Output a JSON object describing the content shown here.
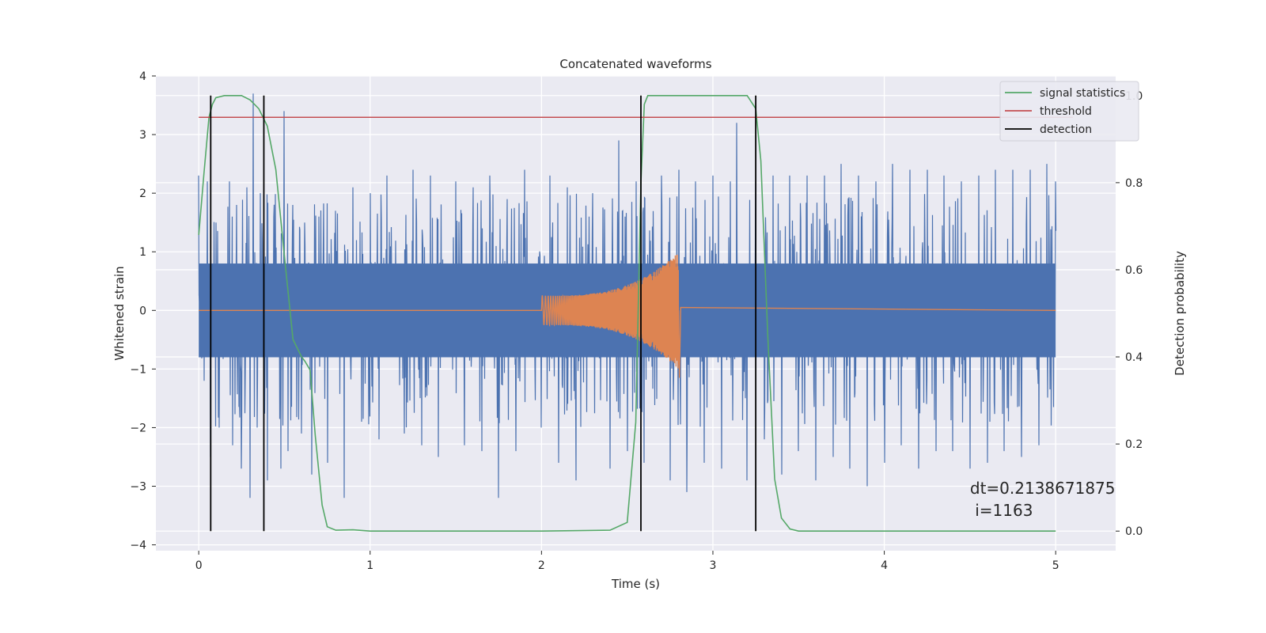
{
  "chart_data": {
    "type": "line",
    "title": "Concatenated waveforms",
    "xlabel": "Time (s)",
    "ylabel": "Whitened strain",
    "y2label": "Detection probability",
    "xlim": [
      -0.25,
      5.35
    ],
    "ylim": [
      -4.1,
      4.0
    ],
    "y2lim": [
      -0.045,
      1.045
    ],
    "xticks": [
      0,
      1,
      2,
      3,
      4,
      5
    ],
    "yticks": [
      -4,
      -3,
      -2,
      -1,
      0,
      1,
      2,
      3,
      4
    ],
    "y2ticks": [
      0.0,
      0.2,
      0.4,
      0.6,
      0.8,
      1.0
    ],
    "grid": true,
    "legend_position": "top-right",
    "series": [
      {
        "name": "",
        "axis": "left",
        "color": "#4c72b0",
        "kind": "noise",
        "x_range": [
          0,
          5
        ],
        "core_amplitude": 0.8,
        "extremes": [
          [
            0.0,
            2.3
          ],
          [
            0.03,
            -1.2
          ],
          [
            0.05,
            2.2
          ],
          [
            0.07,
            -2.5
          ],
          [
            0.1,
            1.5
          ],
          [
            0.12,
            -2.0
          ],
          [
            0.18,
            2.2
          ],
          [
            0.2,
            -2.3
          ],
          [
            0.22,
            1.8
          ],
          [
            0.25,
            -2.7
          ],
          [
            0.28,
            2.1
          ],
          [
            0.3,
            -3.2
          ],
          [
            0.32,
            3.7
          ],
          [
            0.34,
            -2.0
          ],
          [
            0.36,
            2.0
          ],
          [
            0.4,
            -2.9
          ],
          [
            0.44,
            1.6
          ],
          [
            0.48,
            -2.7
          ],
          [
            0.5,
            3.4
          ],
          [
            0.52,
            -2.4
          ],
          [
            0.55,
            1.8
          ],
          [
            0.6,
            -2.1
          ],
          [
            0.62,
            1.5
          ],
          [
            0.66,
            -2.8
          ],
          [
            0.7,
            1.6
          ],
          [
            0.75,
            -2.6
          ],
          [
            0.8,
            1.7
          ],
          [
            0.85,
            -3.2
          ],
          [
            0.9,
            2.1
          ],
          [
            0.95,
            -1.9
          ],
          [
            1.0,
            2.0
          ],
          [
            1.05,
            -2.2
          ],
          [
            1.1,
            2.3
          ],
          [
            1.2,
            -2.1
          ],
          [
            1.25,
            2.4
          ],
          [
            1.3,
            -2.3
          ],
          [
            1.35,
            2.3
          ],
          [
            1.4,
            -2.5
          ],
          [
            1.5,
            2.2
          ],
          [
            1.55,
            -2.3
          ],
          [
            1.6,
            2.1
          ],
          [
            1.65,
            -2.4
          ],
          [
            1.7,
            2.3
          ],
          [
            1.75,
            -3.2
          ],
          [
            1.8,
            1.9
          ],
          [
            1.85,
            -2.4
          ],
          [
            1.9,
            2.4
          ],
          [
            2.0,
            -2.0
          ],
          [
            2.05,
            2.3
          ],
          [
            2.1,
            -2.6
          ],
          [
            2.15,
            2.1
          ],
          [
            2.2,
            -2.9
          ],
          [
            2.3,
            2.0
          ],
          [
            2.4,
            -2.7
          ],
          [
            2.45,
            2.9
          ],
          [
            2.5,
            -2.4
          ],
          [
            2.55,
            2.2
          ],
          [
            2.6,
            -2.6
          ],
          [
            2.7,
            2.3
          ],
          [
            2.75,
            -2.9
          ],
          [
            2.8,
            2.4
          ],
          [
            2.85,
            -3.1
          ],
          [
            2.9,
            2.2
          ],
          [
            2.95,
            -2.6
          ],
          [
            3.0,
            2.3
          ],
          [
            3.05,
            -2.7
          ],
          [
            3.1,
            2.2
          ],
          [
            3.14,
            3.2
          ],
          [
            3.2,
            -2.9
          ],
          [
            3.25,
            2.2
          ],
          [
            3.3,
            -2.2
          ],
          [
            3.35,
            2.3
          ],
          [
            3.4,
            -2.8
          ],
          [
            3.45,
            2.3
          ],
          [
            3.5,
            -2.4
          ],
          [
            3.55,
            2.3
          ],
          [
            3.6,
            -2.9
          ],
          [
            3.65,
            2.3
          ],
          [
            3.7,
            -2.5
          ],
          [
            3.75,
            2.5
          ],
          [
            3.8,
            -2.7
          ],
          [
            3.85,
            2.3
          ],
          [
            3.9,
            -3.0
          ],
          [
            3.95,
            2.2
          ],
          [
            4.0,
            -2.6
          ],
          [
            4.05,
            2.5
          ],
          [
            4.1,
            -2.3
          ],
          [
            4.15,
            2.4
          ],
          [
            4.2,
            -2.7
          ],
          [
            4.25,
            2.4
          ],
          [
            4.3,
            -2.4
          ],
          [
            4.35,
            2.3
          ],
          [
            4.4,
            -2.4
          ],
          [
            4.45,
            2.2
          ],
          [
            4.5,
            -2.7
          ],
          [
            4.55,
            2.3
          ],
          [
            4.6,
            -2.6
          ],
          [
            4.65,
            2.4
          ],
          [
            4.7,
            -2.4
          ],
          [
            4.75,
            2.4
          ],
          [
            4.8,
            -2.5
          ],
          [
            4.85,
            2.4
          ],
          [
            4.9,
            -2.3
          ],
          [
            4.95,
            2.5
          ],
          [
            5.0,
            2.2
          ]
        ]
      },
      {
        "name": "",
        "axis": "left",
        "color": "#dd8452",
        "kind": "chirp",
        "x_range": [
          0,
          5
        ],
        "chirp_start": 2.0,
        "chirp_end": 2.8,
        "start_amplitude": 0.25,
        "peak_amplitude": 1.0,
        "peak_negative": -1.15
      },
      {
        "name": "signal statistics",
        "axis": "right",
        "color": "#55a868",
        "x": [
          0.0,
          0.03,
          0.06,
          0.08,
          0.1,
          0.15,
          0.2,
          0.25,
          0.3,
          0.35,
          0.4,
          0.45,
          0.5,
          0.55,
          0.6,
          0.62,
          0.65,
          0.68,
          0.72,
          0.75,
          0.8,
          0.9,
          1.0,
          2.0,
          2.4,
          2.5,
          2.55,
          2.58,
          2.6,
          2.62,
          2.65,
          2.7,
          3.0,
          3.2,
          3.25,
          3.28,
          3.32,
          3.36,
          3.4,
          3.45,
          3.5,
          4.0,
          5.0
        ],
        "y": [
          0.68,
          0.82,
          0.95,
          0.98,
          0.995,
          1.0,
          1.0,
          1.0,
          0.99,
          0.97,
          0.93,
          0.83,
          0.63,
          0.44,
          0.4,
          0.39,
          0.37,
          0.22,
          0.06,
          0.01,
          0.002,
          0.003,
          0.0,
          0.0,
          0.002,
          0.02,
          0.25,
          0.8,
          0.98,
          1.0,
          1.0,
          1.0,
          1.0,
          1.0,
          0.97,
          0.85,
          0.45,
          0.12,
          0.03,
          0.005,
          0.0,
          0.0,
          0.0
        ]
      },
      {
        "name": "threshold",
        "axis": "right",
        "color": "#c44e52",
        "x": [
          0.0,
          5.1
        ],
        "y": [
          0.95,
          0.95
        ]
      },
      {
        "name": "detection",
        "axis": "right",
        "color": "#000000",
        "vlines": [
          0.07,
          0.38,
          2.58,
          3.25
        ],
        "y_range": [
          0.0,
          1.0
        ]
      }
    ],
    "annotation": {
      "line1": "dt=0.2138671875",
      "line2": " i=1163",
      "x": 4.5,
      "y": 0.1
    }
  }
}
